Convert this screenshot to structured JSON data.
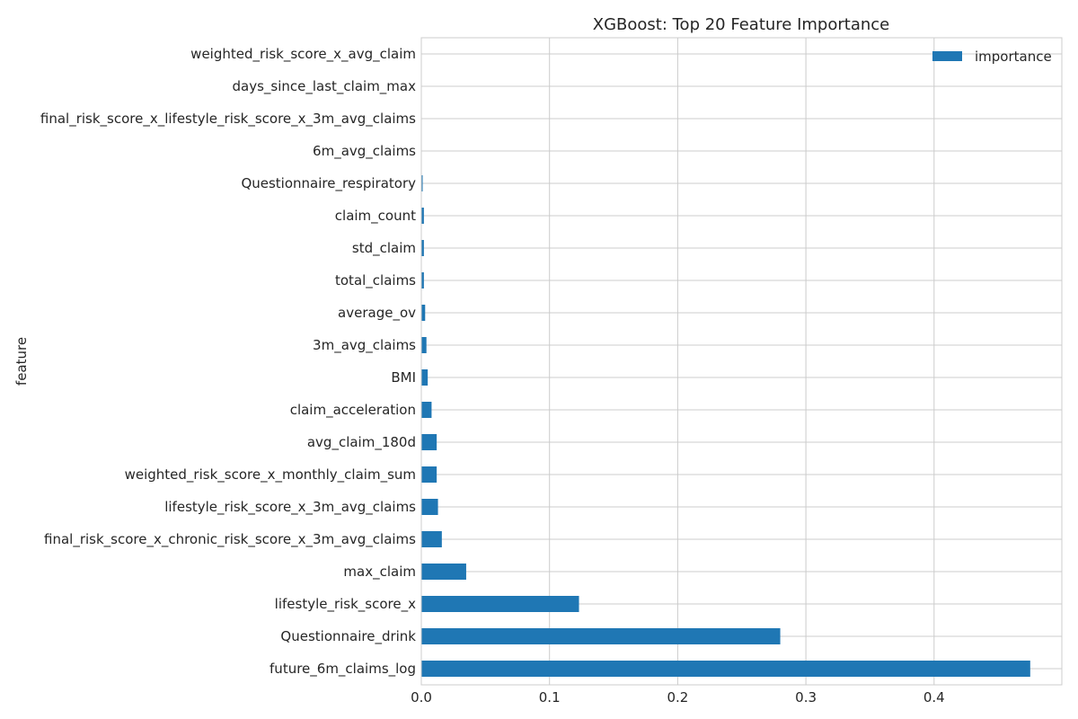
{
  "chart_data": {
    "type": "bar",
    "orientation": "horizontal",
    "title": "XGBoost: Top 20 Feature Importance",
    "xlabel": "",
    "ylabel": "feature",
    "xlim": [
      0,
      0.5
    ],
    "xticks": [
      0.0,
      0.1,
      0.2,
      0.3,
      0.4
    ],
    "xtick_labels": [
      "0.0",
      "0.1",
      "0.2",
      "0.3",
      "0.4"
    ],
    "grid": true,
    "legend_position": "top-right",
    "series": [
      {
        "name": "importance",
        "color": "#1f77b4"
      }
    ],
    "categories": [
      "future_6m_claims_log",
      "Questionnaire_drink",
      "lifestyle_risk_score_x",
      "max_claim",
      "final_risk_score_x_chronic_risk_score_x_3m_avg_claims",
      "lifestyle_risk_score_x_3m_avg_claims",
      "weighted_risk_score_x_monthly_claim_sum",
      "avg_claim_180d",
      "claim_acceleration",
      "BMI",
      "3m_avg_claims",
      "average_ov",
      "total_claims",
      "std_claim",
      "claim_count",
      "Questionnaire_respiratory",
      "6m_avg_claims",
      "final_risk_score_x_lifestyle_risk_score_x_3m_avg_claims",
      "days_since_last_claim_max",
      "weighted_risk_score_x_avg_claim"
    ],
    "values": [
      0.475,
      0.28,
      0.123,
      0.035,
      0.016,
      0.013,
      0.012,
      0.012,
      0.008,
      0.005,
      0.004,
      0.003,
      0.002,
      0.002,
      0.002,
      0.001,
      0.0,
      0.0,
      0.0,
      0.0
    ]
  }
}
